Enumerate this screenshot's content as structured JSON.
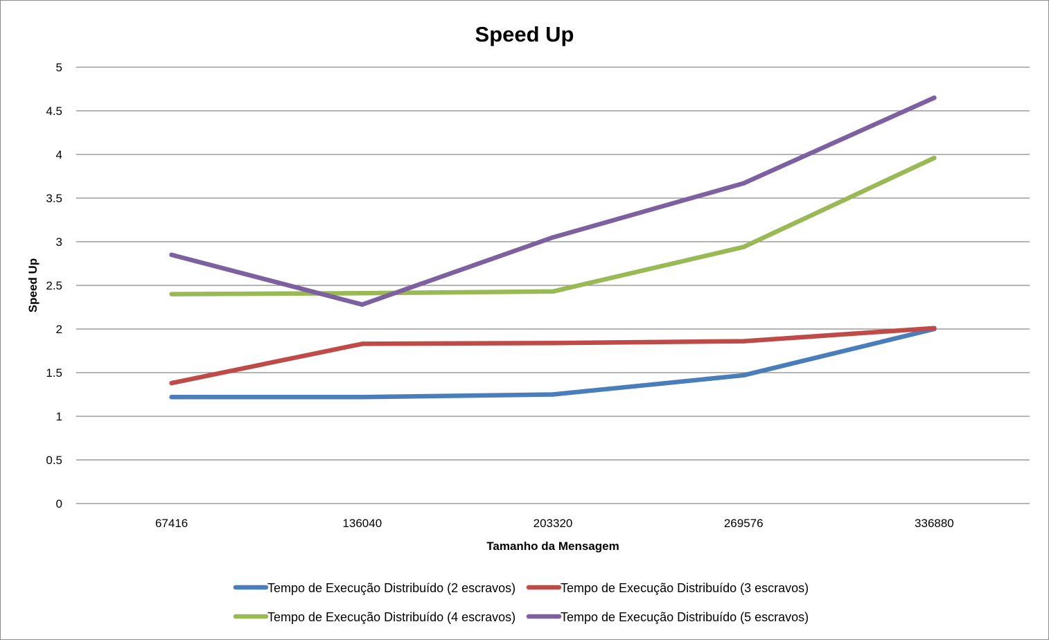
{
  "chart_data": {
    "type": "line",
    "title": "Speed Up",
    "xlabel": "Tamanho da Mensagem",
    "ylabel": "Speed Up",
    "categories": [
      "67416",
      "136040",
      "203320",
      "269576",
      "336880"
    ],
    "ylim": [
      0,
      5
    ],
    "yticks": [
      "0",
      "0.5",
      "1",
      "1.5",
      "2",
      "2.5",
      "3",
      "3.5",
      "4",
      "4.5",
      "5"
    ],
    "grid": true,
    "legend_position": "bottom",
    "series": [
      {
        "name": "Tempo de Execução Distribuído (2 escravos)",
        "color": "#4a7ebb",
        "values": [
          1.22,
          1.22,
          1.25,
          1.47,
          2.0
        ]
      },
      {
        "name": "Tempo de Execução Distribuído (3 escravos)",
        "color": "#be4b48",
        "values": [
          1.38,
          1.83,
          1.84,
          1.86,
          2.01
        ]
      },
      {
        "name": "Tempo de Execução Distribuído (4 escravos)",
        "color": "#98b954",
        "values": [
          2.4,
          2.41,
          2.43,
          2.94,
          3.96
        ]
      },
      {
        "name": "Tempo de Execução Distribuído (5 escravos)",
        "color": "#7d60a0",
        "values": [
          2.85,
          2.28,
          3.05,
          3.67,
          4.65
        ]
      }
    ]
  }
}
